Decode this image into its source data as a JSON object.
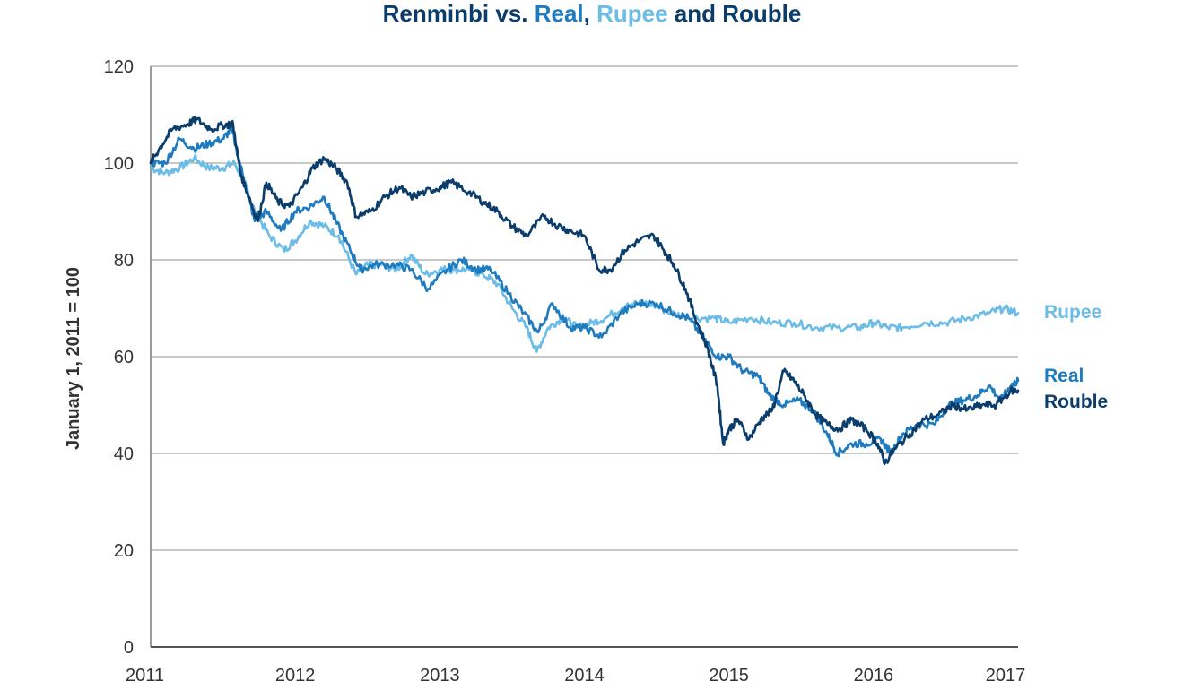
{
  "chart_data": {
    "type": "line",
    "title_parts": [
      {
        "text": "Renminbi vs. ",
        "color": "#0a3d6b"
      },
      {
        "text": "Real",
        "color": "#1f7bbf"
      },
      {
        "text": ", ",
        "color": "#0a3d6b"
      },
      {
        "text": "Rupee",
        "color": "#6bbce6"
      },
      {
        "text": " and Rouble",
        "color": "#0a3d6b"
      }
    ],
    "ylabel": "January 1, 2011 = 100",
    "xlabel": "",
    "xlim": [
      2011,
      2017
    ],
    "ylim": [
      0,
      120
    ],
    "x_ticks": [
      "2011",
      "2012",
      "2013",
      "2014",
      "2015",
      "2016",
      "2017"
    ],
    "y_ticks": [
      "0",
      "20",
      "40",
      "60",
      "80",
      "100",
      "120"
    ],
    "grid": "horizontal",
    "series": [
      {
        "name": "Rupee",
        "color": "#6bbce6",
        "points": [
          [
            2011.0,
            99
          ],
          [
            2011.1,
            98
          ],
          [
            2011.2,
            99
          ],
          [
            2011.3,
            101
          ],
          [
            2011.4,
            99
          ],
          [
            2011.5,
            99
          ],
          [
            2011.58,
            100
          ],
          [
            2011.65,
            96
          ],
          [
            2011.72,
            90
          ],
          [
            2011.82,
            85
          ],
          [
            2011.92,
            82
          ],
          [
            2012.0,
            84
          ],
          [
            2012.1,
            88
          ],
          [
            2012.2,
            87
          ],
          [
            2012.3,
            85
          ],
          [
            2012.42,
            77
          ],
          [
            2012.5,
            79
          ],
          [
            2012.6,
            79
          ],
          [
            2012.7,
            78
          ],
          [
            2012.8,
            81
          ],
          [
            2012.9,
            77
          ],
          [
            2013.0,
            78
          ],
          [
            2013.1,
            78
          ],
          [
            2013.2,
            78
          ],
          [
            2013.3,
            77
          ],
          [
            2013.4,
            75
          ],
          [
            2013.5,
            70
          ],
          [
            2013.6,
            66
          ],
          [
            2013.67,
            61
          ],
          [
            2013.75,
            66
          ],
          [
            2013.85,
            68
          ],
          [
            2013.95,
            66
          ],
          [
            2014.05,
            67
          ],
          [
            2014.15,
            68
          ],
          [
            2014.3,
            71
          ],
          [
            2014.45,
            71
          ],
          [
            2014.6,
            69
          ],
          [
            2014.75,
            68
          ],
          [
            2014.9,
            68
          ],
          [
            2015.0,
            67
          ],
          [
            2015.15,
            68
          ],
          [
            2015.3,
            67
          ],
          [
            2015.45,
            67
          ],
          [
            2015.6,
            66
          ],
          [
            2015.75,
            66
          ],
          [
            2015.9,
            66
          ],
          [
            2016.0,
            67
          ],
          [
            2016.1,
            66
          ],
          [
            2016.2,
            66
          ],
          [
            2016.35,
            67
          ],
          [
            2016.5,
            67
          ],
          [
            2016.65,
            68
          ],
          [
            2016.8,
            69
          ],
          [
            2016.9,
            70
          ],
          [
            2017.0,
            69
          ]
        ]
      },
      {
        "name": "Real",
        "color": "#1f7bbf",
        "points": [
          [
            2011.0,
            100
          ],
          [
            2011.1,
            100
          ],
          [
            2011.2,
            105
          ],
          [
            2011.3,
            103
          ],
          [
            2011.4,
            104
          ],
          [
            2011.5,
            105
          ],
          [
            2011.56,
            107
          ],
          [
            2011.65,
            96
          ],
          [
            2011.72,
            88
          ],
          [
            2011.8,
            90
          ],
          [
            2011.9,
            86
          ],
          [
            2012.0,
            90
          ],
          [
            2012.1,
            91
          ],
          [
            2012.2,
            93
          ],
          [
            2012.28,
            88
          ],
          [
            2012.38,
            82
          ],
          [
            2012.45,
            78
          ],
          [
            2012.55,
            79
          ],
          [
            2012.7,
            79
          ],
          [
            2012.8,
            78
          ],
          [
            2012.92,
            74
          ],
          [
            2013.05,
            78
          ],
          [
            2013.15,
            80
          ],
          [
            2013.25,
            78
          ],
          [
            2013.35,
            78
          ],
          [
            2013.48,
            73
          ],
          [
            2013.58,
            69
          ],
          [
            2013.68,
            65
          ],
          [
            2013.78,
            71
          ],
          [
            2013.9,
            66
          ],
          [
            2014.0,
            66
          ],
          [
            2014.12,
            64
          ],
          [
            2014.25,
            69
          ],
          [
            2014.38,
            71
          ],
          [
            2014.5,
            71
          ],
          [
            2014.62,
            69
          ],
          [
            2014.72,
            68
          ],
          [
            2014.82,
            64
          ],
          [
            2014.92,
            60
          ],
          [
            2015.0,
            60
          ],
          [
            2015.1,
            57
          ],
          [
            2015.2,
            56
          ],
          [
            2015.28,
            52
          ],
          [
            2015.38,
            50
          ],
          [
            2015.48,
            51
          ],
          [
            2015.58,
            49
          ],
          [
            2015.68,
            44
          ],
          [
            2015.75,
            40
          ],
          [
            2015.85,
            42
          ],
          [
            2015.95,
            42
          ],
          [
            2016.05,
            43
          ],
          [
            2016.12,
            40
          ],
          [
            2016.2,
            44
          ],
          [
            2016.3,
            46
          ],
          [
            2016.42,
            46
          ],
          [
            2016.52,
            50
          ],
          [
            2016.62,
            51
          ],
          [
            2016.72,
            52
          ],
          [
            2016.8,
            54
          ],
          [
            2016.88,
            51
          ],
          [
            2016.95,
            54
          ],
          [
            2017.0,
            55
          ]
        ]
      },
      {
        "name": "Rouble",
        "color": "#0a3d6b",
        "points": [
          [
            2011.0,
            100
          ],
          [
            2011.06,
            103
          ],
          [
            2011.15,
            107
          ],
          [
            2011.25,
            108
          ],
          [
            2011.32,
            109
          ],
          [
            2011.42,
            107
          ],
          [
            2011.52,
            108
          ],
          [
            2011.57,
            108
          ],
          [
            2011.62,
            98
          ],
          [
            2011.68,
            93
          ],
          [
            2011.74,
            88
          ],
          [
            2011.8,
            96
          ],
          [
            2011.88,
            92
          ],
          [
            2011.96,
            91
          ],
          [
            2012.05,
            95
          ],
          [
            2012.12,
            99
          ],
          [
            2012.2,
            101
          ],
          [
            2012.28,
            99
          ],
          [
            2012.36,
            96
          ],
          [
            2012.42,
            89
          ],
          [
            2012.52,
            90
          ],
          [
            2012.62,
            93
          ],
          [
            2012.72,
            95
          ],
          [
            2012.8,
            93
          ],
          [
            2012.9,
            94
          ],
          [
            2013.0,
            95
          ],
          [
            2013.08,
            96
          ],
          [
            2013.2,
            94
          ],
          [
            2013.3,
            92
          ],
          [
            2013.4,
            90
          ],
          [
            2013.5,
            87
          ],
          [
            2013.6,
            85
          ],
          [
            2013.72,
            89
          ],
          [
            2013.82,
            87
          ],
          [
            2013.9,
            86
          ],
          [
            2014.0,
            85
          ],
          [
            2014.1,
            78
          ],
          [
            2014.18,
            78
          ],
          [
            2014.28,
            82
          ],
          [
            2014.38,
            84
          ],
          [
            2014.48,
            85
          ],
          [
            2014.55,
            82
          ],
          [
            2014.62,
            79
          ],
          [
            2014.7,
            74
          ],
          [
            2014.78,
            67
          ],
          [
            2014.85,
            62
          ],
          [
            2014.92,
            54
          ],
          [
            2014.96,
            42
          ],
          [
            2015.0,
            45
          ],
          [
            2015.06,
            47
          ],
          [
            2015.14,
            43
          ],
          [
            2015.22,
            47
          ],
          [
            2015.3,
            49
          ],
          [
            2015.38,
            57
          ],
          [
            2015.45,
            55
          ],
          [
            2015.52,
            52
          ],
          [
            2015.6,
            48
          ],
          [
            2015.68,
            46
          ],
          [
            2015.76,
            45
          ],
          [
            2015.85,
            47
          ],
          [
            2015.95,
            45
          ],
          [
            2016.03,
            42
          ],
          [
            2016.08,
            38
          ],
          [
            2016.15,
            41
          ],
          [
            2016.25,
            44
          ],
          [
            2016.35,
            47
          ],
          [
            2016.45,
            48
          ],
          [
            2016.55,
            50
          ],
          [
            2016.65,
            49
          ],
          [
            2016.75,
            50
          ],
          [
            2016.85,
            50
          ],
          [
            2016.95,
            53
          ],
          [
            2017.0,
            53
          ]
        ]
      }
    ]
  }
}
